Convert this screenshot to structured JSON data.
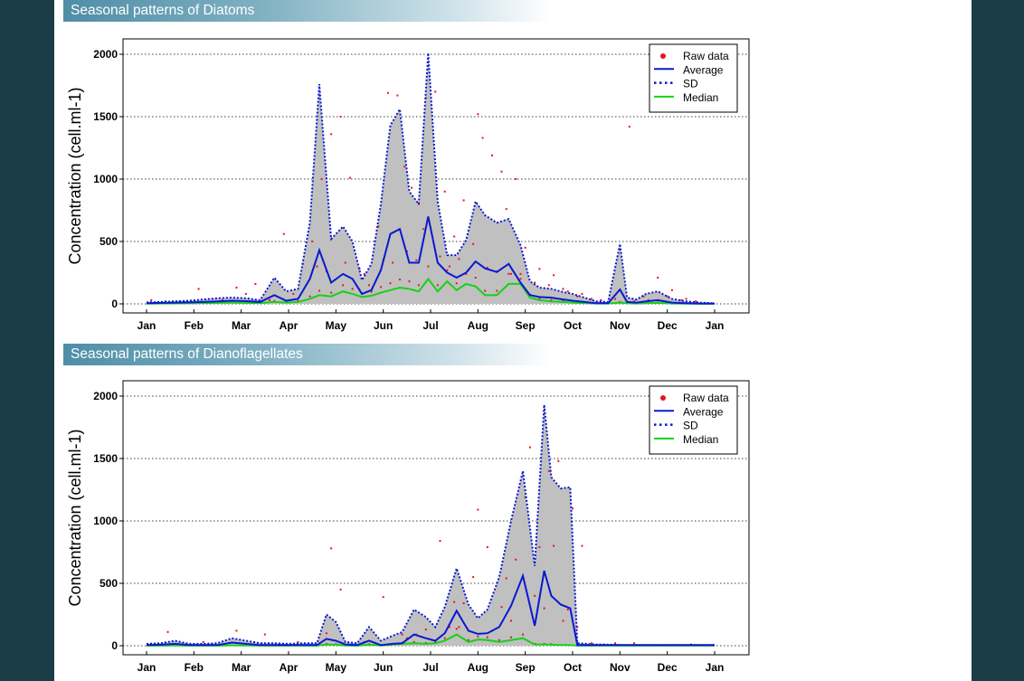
{
  "page": {
    "colors": {
      "background": "#1b3d48",
      "header_start": "#4e8ea6",
      "header_end": "#ffffff"
    }
  },
  "charts": [
    {
      "header": "Seasonal patterns of Diatoms"
    },
    {
      "header": "Seasonal patterns of Dianoflagellates"
    }
  ],
  "chart_data": [
    {
      "type": "line",
      "title": "Seasonal patterns of Diatoms",
      "xlabel": "",
      "ylabel": "Concentration (cell.ml-1)",
      "ylim": [
        0,
        2000
      ],
      "yticks": [
        0,
        500,
        1000,
        1500,
        2000
      ],
      "xlim": [
        0,
        12
      ],
      "month_labels": [
        "Jan",
        "Feb",
        "Mar",
        "Apr",
        "May",
        "Jun",
        "Jul",
        "Aug",
        "Sep",
        "Oct",
        "Nov",
        "Dec",
        "Jan"
      ],
      "grid": "horizontal dotted",
      "legend": {
        "position": "top-right",
        "entries": [
          "Raw data",
          "Average",
          "SD",
          "Median"
        ]
      },
      "colors": {
        "raw": "#e8141e",
        "average": "#0a18d0",
        "sd": "#0a18d0",
        "median": "#18d018",
        "band": "#c0c0c0"
      },
      "x": [
        0,
        0.3,
        0.6,
        0.9,
        1.2,
        1.5,
        1.8,
        2.1,
        2.4,
        2.7,
        2.95,
        3.2,
        3.45,
        3.65,
        3.9,
        4.15,
        4.35,
        4.55,
        4.75,
        4.95,
        5.15,
        5.35,
        5.55,
        5.75,
        5.95,
        6.15,
        6.35,
        6.55,
        6.75,
        6.95,
        7.15,
        7.4,
        7.65,
        7.9,
        8.1,
        8.3,
        8.55,
        8.8,
        9.0,
        9.25,
        9.5,
        9.75,
        10.0,
        10.15,
        10.35,
        10.55,
        10.8,
        11.1,
        11.4,
        11.7,
        12.0
      ],
      "series": [
        {
          "name": "Average",
          "values": [
            5,
            8,
            10,
            12,
            15,
            20,
            25,
            22,
            15,
            70,
            25,
            40,
            200,
            430,
            170,
            240,
            200,
            80,
            110,
            270,
            560,
            600,
            330,
            330,
            700,
            330,
            250,
            210,
            250,
            340,
            285,
            255,
            320,
            170,
            70,
            55,
            50,
            35,
            25,
            15,
            5,
            5,
            115,
            15,
            10,
            20,
            30,
            10,
            5,
            3,
            3
          ]
        },
        {
          "name": "SD",
          "values": [
            12,
            15,
            20,
            25,
            35,
            45,
            50,
            45,
            30,
            210,
            100,
            120,
            650,
            1760,
            520,
            620,
            500,
            190,
            320,
            800,
            1430,
            1560,
            900,
            800,
            2010,
            820,
            390,
            390,
            510,
            820,
            710,
            650,
            680,
            470,
            180,
            130,
            120,
            95,
            80,
            50,
            20,
            15,
            480,
            50,
            35,
            80,
            100,
            40,
            20,
            10,
            5
          ]
        },
        {
          "name": "Median",
          "values": [
            2,
            3,
            4,
            5,
            6,
            8,
            10,
            8,
            6,
            15,
            10,
            15,
            40,
            70,
            60,
            100,
            80,
            55,
            65,
            90,
            110,
            130,
            120,
            100,
            200,
            100,
            180,
            110,
            160,
            140,
            70,
            70,
            160,
            160,
            50,
            30,
            20,
            15,
            10,
            6,
            3,
            3,
            10,
            5,
            3,
            5,
            8,
            3,
            2,
            1,
            1
          ]
        }
      ],
      "raw_data": [
        [
          0.1,
          30
        ],
        [
          0.4,
          20
        ],
        [
          0.8,
          15
        ],
        [
          1.1,
          120
        ],
        [
          1.3,
          10
        ],
        [
          1.6,
          30
        ],
        [
          1.9,
          130
        ],
        [
          2.1,
          80
        ],
        [
          2.3,
          160
        ],
        [
          2.6,
          30
        ],
        [
          2.9,
          560
        ],
        [
          3.1,
          80
        ],
        [
          3.3,
          320
        ],
        [
          3.5,
          500
        ],
        [
          3.7,
          1000
        ],
        [
          3.9,
          1360
        ],
        [
          4.1,
          1500
        ],
        [
          4.3,
          1010
        ],
        [
          4.5,
          280
        ],
        [
          4.7,
          150
        ],
        [
          4.9,
          620
        ],
        [
          5.1,
          1690
        ],
        [
          5.3,
          1670
        ],
        [
          5.45,
          1100
        ],
        [
          5.6,
          930
        ],
        [
          5.75,
          800
        ],
        [
          5.9,
          1650
        ],
        [
          6.1,
          1700
        ],
        [
          6.3,
          900
        ],
        [
          6.5,
          540
        ],
        [
          6.7,
          830
        ],
        [
          6.9,
          480
        ],
        [
          7.0,
          1520
        ],
        [
          7.1,
          1330
        ],
        [
          7.3,
          1190
        ],
        [
          7.5,
          1060
        ],
        [
          7.6,
          760
        ],
        [
          7.8,
          1000
        ],
        [
          8.0,
          450
        ],
        [
          8.3,
          280
        ],
        [
          8.6,
          230
        ],
        [
          8.9,
          100
        ],
        [
          9.2,
          80
        ],
        [
          9.6,
          30
        ],
        [
          10.2,
          1420
        ],
        [
          10.5,
          60
        ],
        [
          10.8,
          210
        ],
        [
          11.1,
          110
        ],
        [
          11.4,
          40
        ],
        [
          11.8,
          5
        ],
        [
          3.6,
          300
        ],
        [
          3.8,
          260
        ],
        [
          4.2,
          330
        ],
        [
          4.6,
          240
        ],
        [
          5.0,
          350
        ],
        [
          5.2,
          330
        ],
        [
          5.5,
          420
        ],
        [
          5.7,
          350
        ],
        [
          5.85,
          600
        ],
        [
          6.2,
          380
        ],
        [
          6.4,
          300
        ],
        [
          6.6,
          360
        ],
        [
          6.8,
          270
        ],
        [
          7.2,
          290
        ],
        [
          7.4,
          260
        ],
        [
          7.7,
          240
        ],
        [
          7.9,
          200
        ],
        [
          8.2,
          170
        ],
        [
          8.5,
          150
        ],
        [
          8.8,
          120
        ],
        [
          9.1,
          60
        ],
        [
          9.4,
          40
        ],
        [
          9.9,
          40
        ],
        [
          10.3,
          20
        ],
        [
          10.6,
          30
        ],
        [
          11.0,
          60
        ],
        [
          11.3,
          30
        ],
        [
          11.6,
          20
        ]
      ]
    },
    {
      "type": "line",
      "title": "Seasonal patterns of Dianoflagellates",
      "xlabel": "",
      "ylabel": "Concentration (cell.ml-1)",
      "ylim": [
        0,
        2000
      ],
      "yticks": [
        0,
        500,
        1000,
        1500,
        2000
      ],
      "xlim": [
        0,
        12
      ],
      "month_labels": [
        "Jan",
        "Feb",
        "Mar",
        "Apr",
        "May",
        "Jun",
        "Jul",
        "Aug",
        "Sep",
        "Oct",
        "Nov",
        "Dec",
        "Jan"
      ],
      "grid": "horizontal dotted",
      "legend": {
        "position": "top-right",
        "entries": [
          "Raw data",
          "Average",
          "SD",
          "Median"
        ]
      },
      "colors": {
        "raw": "#e8141e",
        "average": "#0a18d0",
        "sd": "#0a18d0",
        "median": "#18d018",
        "band": "#c0c0c0"
      },
      "x": [
        0,
        0.3,
        0.6,
        0.9,
        1.2,
        1.5,
        1.8,
        2.1,
        2.4,
        2.7,
        3.0,
        3.3,
        3.6,
        3.8,
        4.0,
        4.2,
        4.45,
        4.7,
        4.95,
        5.2,
        5.4,
        5.65,
        5.9,
        6.1,
        6.3,
        6.55,
        6.8,
        7.0,
        7.2,
        7.45,
        7.7,
        7.95,
        8.2,
        8.4,
        8.55,
        8.75,
        8.95,
        9.1,
        9.3,
        9.5,
        9.65,
        9.8,
        9.9,
        10.1,
        10.5,
        11.0,
        11.5,
        12.0
      ],
      "series": [
        {
          "name": "Average",
          "values": [
            5,
            8,
            15,
            5,
            5,
            5,
            25,
            15,
            5,
            5,
            5,
            5,
            5,
            55,
            40,
            10,
            5,
            40,
            5,
            15,
            20,
            90,
            60,
            40,
            100,
            280,
            120,
            95,
            100,
            150,
            320,
            560,
            160,
            600,
            400,
            330,
            300,
            5,
            5,
            5,
            5,
            5,
            5,
            5,
            5,
            5,
            5,
            5
          ]
        },
        {
          "name": "SD",
          "values": [
            15,
            20,
            40,
            15,
            15,
            20,
            60,
            40,
            20,
            20,
            15,
            20,
            20,
            250,
            190,
            30,
            20,
            150,
            40,
            80,
            110,
            290,
            230,
            150,
            310,
            620,
            330,
            220,
            290,
            550,
            1000,
            1400,
            640,
            1930,
            1350,
            1260,
            1270,
            20,
            15,
            10,
            10,
            8,
            8,
            5,
            5,
            5,
            5,
            5
          ]
        },
        {
          "name": "Median",
          "values": [
            1,
            1,
            2,
            1,
            1,
            1,
            3,
            2,
            1,
            1,
            1,
            1,
            1,
            10,
            8,
            2,
            1,
            8,
            2,
            10,
            15,
            20,
            15,
            20,
            40,
            90,
            30,
            50,
            45,
            30,
            45,
            60,
            10,
            10,
            8,
            5,
            5,
            1,
            1,
            1,
            1,
            1,
            1,
            1,
            1,
            1,
            1,
            1
          ]
        }
      ],
      "raw_data": [
        [
          0.45,
          110
        ],
        [
          1.2,
          30
        ],
        [
          1.9,
          120
        ],
        [
          2.5,
          90
        ],
        [
          3.2,
          30
        ],
        [
          3.9,
          780
        ],
        [
          4.1,
          450
        ],
        [
          4.6,
          30
        ],
        [
          5.0,
          390
        ],
        [
          5.4,
          90
        ],
        [
          5.7,
          90
        ],
        [
          5.9,
          130
        ],
        [
          6.2,
          840
        ],
        [
          6.5,
          350
        ],
        [
          6.7,
          340
        ],
        [
          6.9,
          550
        ],
        [
          7.0,
          1090
        ],
        [
          7.2,
          790
        ],
        [
          7.5,
          310
        ],
        [
          7.6,
          540
        ],
        [
          7.8,
          690
        ],
        [
          8.0,
          1190
        ],
        [
          8.1,
          1590
        ],
        [
          8.3,
          790
        ],
        [
          8.5,
          1400
        ],
        [
          8.6,
          800
        ],
        [
          8.7,
          1480
        ],
        [
          8.9,
          290
        ],
        [
          9.0,
          1100
        ],
        [
          9.2,
          800
        ],
        [
          9.4,
          20
        ],
        [
          9.9,
          20
        ],
        [
          10.3,
          20
        ],
        [
          11.5,
          10
        ],
        [
          3.8,
          100
        ],
        [
          5.5,
          60
        ],
        [
          6.4,
          150
        ],
        [
          6.6,
          150
        ],
        [
          7.3,
          120
        ],
        [
          7.7,
          200
        ],
        [
          8.2,
          400
        ],
        [
          8.4,
          300
        ],
        [
          8.8,
          200
        ],
        [
          9.1,
          150
        ]
      ]
    }
  ]
}
